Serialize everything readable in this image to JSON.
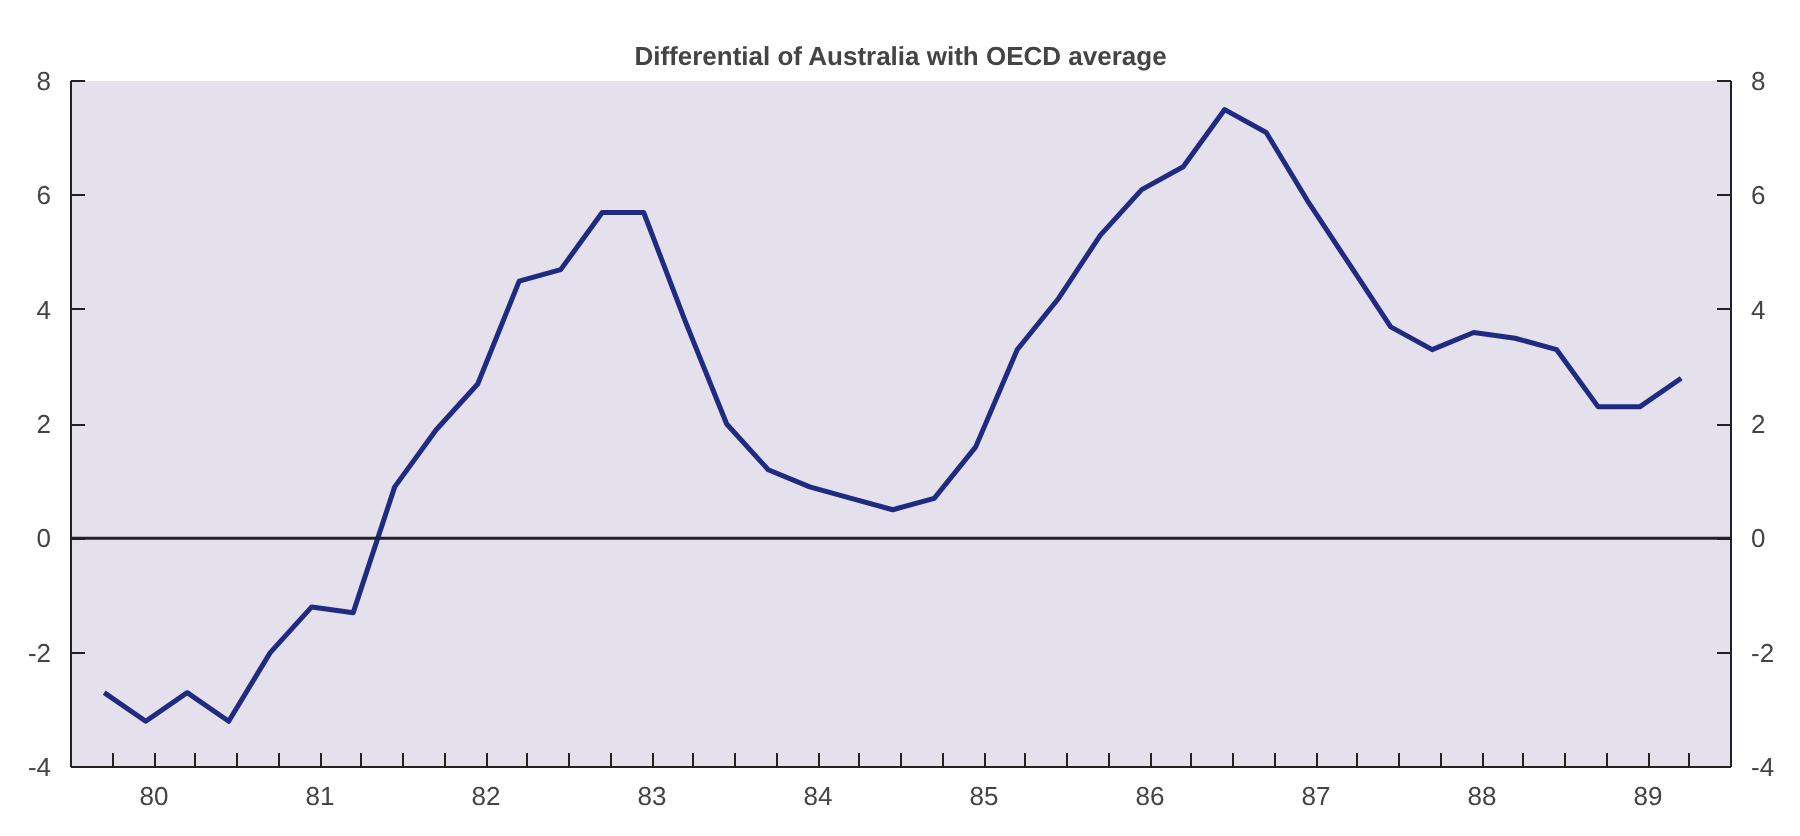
{
  "chart_data": {
    "type": "line",
    "title": "Differential of Australia with OECD average",
    "x": [
      79.7,
      79.95,
      80.2,
      80.45,
      80.7,
      80.95,
      81.2,
      81.45,
      81.7,
      81.95,
      82.2,
      82.45,
      82.7,
      82.95,
      83.2,
      83.45,
      83.7,
      83.95,
      84.2,
      84.45,
      84.7,
      84.95,
      85.2,
      85.45,
      85.7,
      85.95,
      86.2,
      86.45,
      86.7,
      86.95,
      87.2,
      87.45,
      87.7,
      87.95,
      88.2,
      88.45,
      88.7,
      88.95,
      89.2
    ],
    "series": [
      {
        "color": "#1f2a80",
        "values": [
          -2.7,
          -3.2,
          -2.7,
          -3.2,
          -2.0,
          -1.2,
          -1.3,
          0.9,
          1.9,
          2.7,
          4.5,
          4.7,
          5.7,
          5.7,
          3.8,
          2.0,
          1.2,
          0.9,
          0.7,
          0.5,
          0.7,
          1.6,
          3.3,
          4.2,
          5.3,
          6.1,
          6.5,
          7.5,
          7.1,
          5.9,
          4.8,
          3.7,
          3.3,
          3.6,
          3.5,
          3.3,
          2.3,
          2.3,
          2.8
        ]
      }
    ],
    "xlim": [
      79.5,
      89.5
    ],
    "xticks": [
      {
        "value": 79.5,
        "label": null
      },
      {
        "value": 79.75,
        "label": null
      },
      80,
      {
        "value": 80.25,
        "label": null
      },
      {
        "value": 80.5,
        "label": null
      },
      {
        "value": 80.75,
        "label": null
      },
      81,
      {
        "value": 81.25,
        "label": null
      },
      {
        "value": 81.5,
        "label": null
      },
      {
        "value": 81.75,
        "label": null
      },
      82,
      {
        "value": 82.25,
        "label": null
      },
      {
        "value": 82.5,
        "label": null
      },
      {
        "value": 82.75,
        "label": null
      },
      83,
      {
        "value": 83.25,
        "label": null
      },
      {
        "value": 83.5,
        "label": null
      },
      {
        "value": 83.75,
        "label": null
      },
      84,
      {
        "value": 84.25,
        "label": null
      },
      {
        "value": 84.5,
        "label": null
      },
      {
        "value": 84.75,
        "label": null
      },
      85,
      {
        "value": 85.25,
        "label": null
      },
      {
        "value": 85.5,
        "label": null
      },
      {
        "value": 85.75,
        "label": null
      },
      86,
      {
        "value": 86.25,
        "label": null
      },
      {
        "value": 86.5,
        "label": null
      },
      {
        "value": 86.75,
        "label": null
      },
      87,
      {
        "value": 87.25,
        "label": null
      },
      {
        "value": 87.5,
        "label": null
      },
      {
        "value": 87.75,
        "label": null
      },
      88,
      {
        "value": 88.25,
        "label": null
      },
      {
        "value": 88.5,
        "label": null
      },
      {
        "value": 88.75,
        "label": null
      },
      89,
      {
        "value": 89.25,
        "label": null
      },
      {
        "value": 89.5,
        "label": null
      }
    ],
    "ylim": [
      -4,
      8
    ],
    "yticks": [
      -4,
      -2,
      0,
      2,
      4,
      6,
      8
    ],
    "y2lim": [
      -4,
      8
    ],
    "y2ticks": [
      -4,
      -2,
      0,
      2,
      4,
      6,
      8
    ],
    "ref_lines": [
      {
        "axis": "y",
        "value": 0,
        "color": "#222222"
      }
    ],
    "grid": false,
    "marker": "none",
    "line_style": "solid"
  }
}
